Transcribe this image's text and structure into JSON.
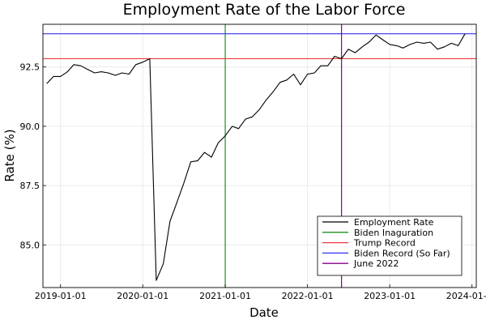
{
  "chart_data": {
    "type": "line",
    "title": "Employment Rate of the Labor Force",
    "xlabel": "Date",
    "ylabel": "Rate (%)",
    "xlim": [
      "2018-10-15",
      "2024-01-20"
    ],
    "ylim": [
      83.2,
      94.3
    ],
    "x_ticks": [
      {
        "date": "2019-01-01",
        "label": "2019-01-01"
      },
      {
        "date": "2020-01-01",
        "label": "2020-01-01"
      },
      {
        "date": "2021-01-01",
        "label": "2021-01-01"
      },
      {
        "date": "2022-01-01",
        "label": "2022-01-01"
      },
      {
        "date": "2023-01-01",
        "label": "2023-01-01"
      },
      {
        "date": "2024-01-01",
        "label": "2024-01-01"
      }
    ],
    "y_ticks": [
      {
        "value": 85.0,
        "label": "85.0"
      },
      {
        "value": 87.5,
        "label": "87.5"
      },
      {
        "value": 90.0,
        "label": "90.0"
      },
      {
        "value": 92.5,
        "label": "92.5"
      }
    ],
    "grid": true,
    "legend_position": "bottom-right",
    "series": [
      {
        "name": "Employment Rate",
        "color": "#000000",
        "x": [
          "2018-11-01",
          "2018-12-01",
          "2019-01-01",
          "2019-02-01",
          "2019-03-01",
          "2019-04-01",
          "2019-05-01",
          "2019-06-01",
          "2019-07-01",
          "2019-08-01",
          "2019-09-01",
          "2019-10-01",
          "2019-11-01",
          "2019-12-01",
          "2020-01-01",
          "2020-02-01",
          "2020-03-01",
          "2020-04-01",
          "2020-05-01",
          "2020-06-01",
          "2020-07-01",
          "2020-08-01",
          "2020-09-01",
          "2020-10-01",
          "2020-11-01",
          "2020-12-01",
          "2021-01-01",
          "2021-02-01",
          "2021-03-01",
          "2021-04-01",
          "2021-05-01",
          "2021-06-01",
          "2021-07-01",
          "2021-08-01",
          "2021-09-01",
          "2021-10-01",
          "2021-11-01",
          "2021-12-01",
          "2022-01-01",
          "2022-02-01",
          "2022-03-01",
          "2022-04-01",
          "2022-05-01",
          "2022-06-01",
          "2022-07-01",
          "2022-08-01",
          "2022-09-01",
          "2022-10-01",
          "2022-11-01",
          "2022-12-01",
          "2023-01-01",
          "2023-02-01",
          "2023-03-01",
          "2023-04-01",
          "2023-05-01",
          "2023-06-01",
          "2023-07-01",
          "2023-08-01",
          "2023-09-01",
          "2023-10-01",
          "2023-11-01",
          "2023-12-01"
        ],
        "y": [
          91.8,
          92.1,
          92.1,
          92.3,
          92.6,
          92.55,
          92.4,
          92.25,
          92.3,
          92.25,
          92.15,
          92.25,
          92.2,
          92.6,
          92.7,
          92.85,
          83.5,
          84.2,
          86.0,
          86.8,
          87.6,
          88.5,
          88.55,
          88.9,
          88.7,
          89.3,
          89.6,
          90.0,
          89.9,
          90.3,
          90.4,
          90.7,
          91.1,
          91.45,
          91.85,
          91.95,
          92.2,
          91.75,
          92.2,
          92.25,
          92.55,
          92.55,
          92.95,
          92.85,
          93.25,
          93.1,
          93.35,
          93.55,
          93.85,
          93.65,
          93.45,
          93.4,
          93.3,
          93.45,
          93.55,
          93.5,
          93.55,
          93.25,
          93.35,
          93.5,
          93.4,
          93.9
        ]
      },
      {
        "name": "Biden Inaguration",
        "color": "#1f8f1f",
        "orientation": "vertical",
        "value": "2021-01-01"
      },
      {
        "name": "Trump Record",
        "color": "#ee3b3b",
        "orientation": "horizontal",
        "value": 92.85
      },
      {
        "name": "Biden Record (So Far)",
        "color": "#3333ee",
        "orientation": "horizontal",
        "value": 93.9
      },
      {
        "name": "June 2022",
        "color": "#8b008b",
        "orientation": "vertical",
        "value": "2022-06-01"
      }
    ]
  }
}
